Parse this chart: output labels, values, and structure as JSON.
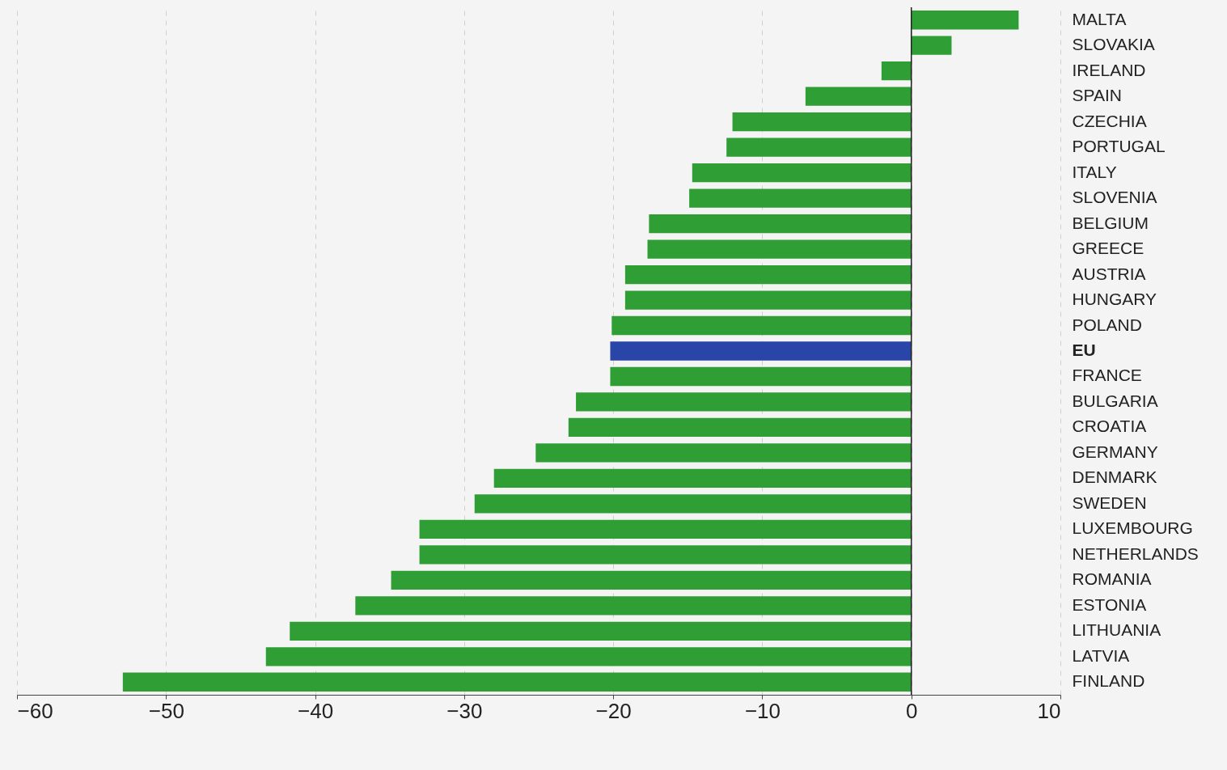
{
  "chart_data": {
    "type": "bar",
    "orientation": "horizontal",
    "categories": [
      "MALTA",
      "SLOVAKIA",
      "IRELAND",
      "SPAIN",
      "CZECHIA",
      "PORTUGAL",
      "ITALY",
      "SLOVENIA",
      "BELGIUM",
      "GREECE",
      "AUSTRIA",
      "HUNGARY",
      "POLAND",
      "EU",
      "FRANCE",
      "BULGARIA",
      "CROATIA",
      "GERMANY",
      "DENMARK",
      "SWEDEN",
      "LUXEMBOURG",
      "NETHERLANDS",
      "ROMANIA",
      "ESTONIA",
      "LITHUANIA",
      "LATVIA",
      "FINLAND"
    ],
    "values": [
      7.2,
      2.7,
      -2.0,
      -7.1,
      -12.0,
      -12.4,
      -14.7,
      -14.9,
      -17.6,
      -17.7,
      -19.2,
      -19.2,
      -20.1,
      -20.2,
      -20.2,
      -22.5,
      -23.0,
      -25.2,
      -28.0,
      -29.3,
      -33.0,
      -33.0,
      -34.9,
      -37.3,
      -41.7,
      -43.3,
      -52.9
    ],
    "colors": [
      "#2e9e35",
      "#2e9e35",
      "#2e9e35",
      "#2e9e35",
      "#2e9e35",
      "#2e9e35",
      "#2e9e35",
      "#2e9e35",
      "#2e9e35",
      "#2e9e35",
      "#2e9e35",
      "#2e9e35",
      "#2e9e35",
      "#2a45a8",
      "#2e9e35",
      "#2e9e35",
      "#2e9e35",
      "#2e9e35",
      "#2e9e35",
      "#2e9e35",
      "#2e9e35",
      "#2e9e35",
      "#2e9e35",
      "#2e9e35",
      "#2e9e35",
      "#2e9e35",
      "#2e9e35"
    ],
    "xlim": [
      -60,
      10
    ],
    "xticks": [
      -60,
      -50,
      -40,
      -30,
      -20,
      -10,
      0,
      10
    ],
    "grid": "x",
    "ref_lines": [
      {
        "axis": "x",
        "value": 0,
        "color": "#222222"
      }
    ]
  }
}
